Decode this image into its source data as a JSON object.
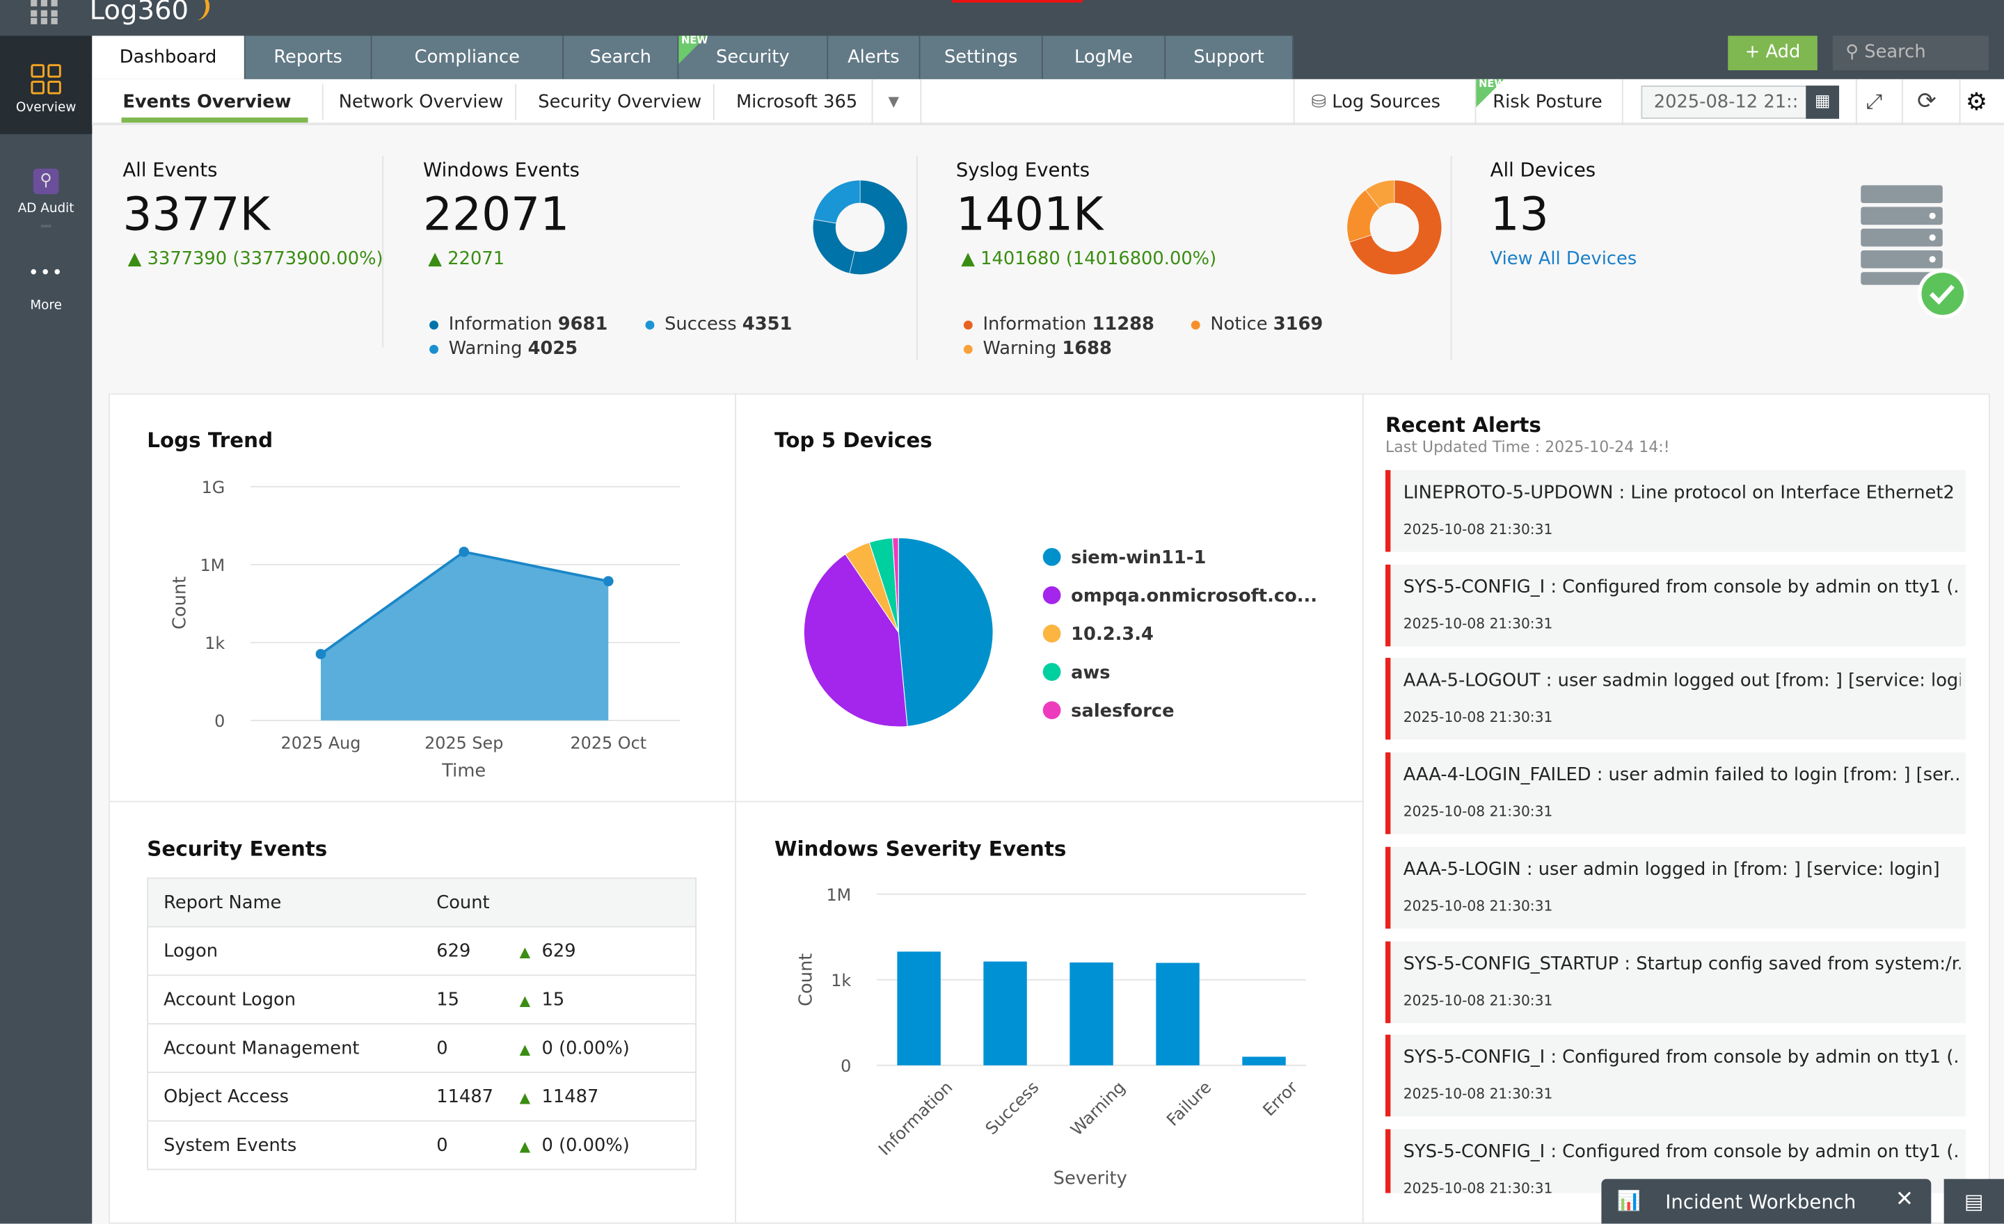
{
  "app": {
    "logo": "Log360"
  },
  "sidebar": {
    "items": [
      {
        "label": "Overview",
        "icon": "grid-icon"
      },
      {
        "label": "AD Audit",
        "icon": "search-icon"
      },
      {
        "label": "More",
        "icon": "more-icon"
      }
    ]
  },
  "tabs": [
    {
      "label": "Dashboard",
      "active": true
    },
    {
      "label": "Reports"
    },
    {
      "label": "Compliance"
    },
    {
      "label": "Search"
    },
    {
      "label": "Security",
      "badge": "NEW"
    },
    {
      "label": "Alerts"
    },
    {
      "label": "Settings"
    },
    {
      "label": "LogMe"
    },
    {
      "label": "Support"
    }
  ],
  "header": {
    "add_label": "Add",
    "search_placeholder": "Search"
  },
  "subnav": {
    "items": [
      "Events Overview",
      "Network Overview",
      "Security Overview",
      "Microsoft 365"
    ],
    "active": "Events Overview",
    "log_sources": "Log Sources",
    "risk_posture": "Risk Posture",
    "risk_badge": "NEW",
    "date_value": "2025-08-12 21::"
  },
  "summary": {
    "all_events": {
      "title": "All Events",
      "value": "3377K",
      "delta": "3377390 (33773900.00%)"
    },
    "windows": {
      "title": "Windows Events",
      "value": "22071",
      "delta": "22071",
      "legend": [
        {
          "label": "Information",
          "value": 9681,
          "color": "#0073a8"
        },
        {
          "label": "Success",
          "value": 4351,
          "color": "#1a95d6"
        },
        {
          "label": "Warning",
          "value": 4025,
          "color": "#1a8fcf"
        }
      ]
    },
    "syslog": {
      "title": "Syslog Events",
      "value": "1401K",
      "delta": "1401680 (14016800.00%)",
      "legend": [
        {
          "label": "Information",
          "value": 11288,
          "color": "#e8621f"
        },
        {
          "label": "Notice",
          "value": 3169,
          "color": "#f7902b"
        },
        {
          "label": "Warning",
          "value": 1688,
          "color": "#f9a13a"
        }
      ]
    },
    "devices": {
      "title": "All Devices",
      "value": "13",
      "link": "View All Devices"
    }
  },
  "logs_trend": {
    "title": "Logs Trend",
    "chart_data": {
      "type": "area",
      "x": [
        "2025 Aug",
        "2025 Sep",
        "2025 Oct"
      ],
      "values": [
        360,
        3100000,
        230000
      ],
      "xlabel": "Time",
      "ylabel": "Count",
      "yscale": "log",
      "yticks": [
        "0",
        "1k",
        "1M",
        "1G"
      ],
      "color": "#5aaedc"
    }
  },
  "top_devices": {
    "title": "Top 5 Devices",
    "chart_data": {
      "type": "pie",
      "categories": [
        "siem-win11-1",
        "ompqa.onmicrosoft.co...",
        "10.2.3.4",
        "aws",
        "salesforce"
      ],
      "values": [
        48.5,
        42,
        4.5,
        4,
        1
      ],
      "colors": [
        "#0091cc",
        "#a425ec",
        "#fbb540",
        "#00cfa0",
        "#ee3bbd"
      ],
      "legend": "right"
    }
  },
  "security_events": {
    "title": "Security Events",
    "headers": [
      "Report Name",
      "Count"
    ],
    "rows": [
      [
        "Logon",
        "629",
        "629"
      ],
      [
        "Account Logon",
        "15",
        "15"
      ],
      [
        "Account Management",
        "0",
        "0 (0.00%)"
      ],
      [
        "Object Access",
        "11487",
        "11487"
      ],
      [
        "System Events",
        "0",
        "0 (0.00%)"
      ]
    ]
  },
  "windows_severity": {
    "title": "Windows Severity Events",
    "chart_data": {
      "type": "bar",
      "categories": [
        "Information",
        "Success",
        "Warning",
        "Failure",
        "Error"
      ],
      "values": [
        9681,
        4351,
        4025,
        3900,
        2
      ],
      "xlabel": "Severity",
      "ylabel": "Count",
      "yscale": "log",
      "yticks": [
        "0",
        "1k",
        "1M"
      ],
      "color": "#0091d5"
    }
  },
  "recent_alerts": {
    "title": "Recent Alerts",
    "updated": "Last Updated Time : 2025-10-24 14:!",
    "items": [
      {
        "text": "LINEPROTO-5-UPDOWN : Line protocol on Interface Ethernet2 (...",
        "time": "2025-10-08 21:30:31"
      },
      {
        "text": "SYS-5-CONFIG_I : Configured from console by admin on tty1 (...",
        "time": "2025-10-08 21:30:31"
      },
      {
        "text": "AAA-5-LOGOUT : user sadmin logged out [from: ] [service: logi...",
        "time": "2025-10-08 21:30:31"
      },
      {
        "text": "AAA-4-LOGIN_FAILED : user admin failed to login [from: ] [ser...",
        "time": "2025-10-08 21:30:31"
      },
      {
        "text": "AAA-5-LOGIN : user admin logged in [from: ] [service: login]",
        "time": "2025-10-08 21:30:31"
      },
      {
        "text": "SYS-5-CONFIG_STARTUP : Startup config saved from system:/r...",
        "time": "2025-10-08 21:30:31"
      },
      {
        "text": "SYS-5-CONFIG_I : Configured from console by admin on tty1 (...",
        "time": "2025-10-08 21:30:31"
      },
      {
        "text": "SYS-5-CONFIG_I : Configured from console by admin on tty1 (...",
        "time": "2025-10-08 21:30:31"
      }
    ]
  },
  "workbench": {
    "label": "Incident Workbench"
  }
}
